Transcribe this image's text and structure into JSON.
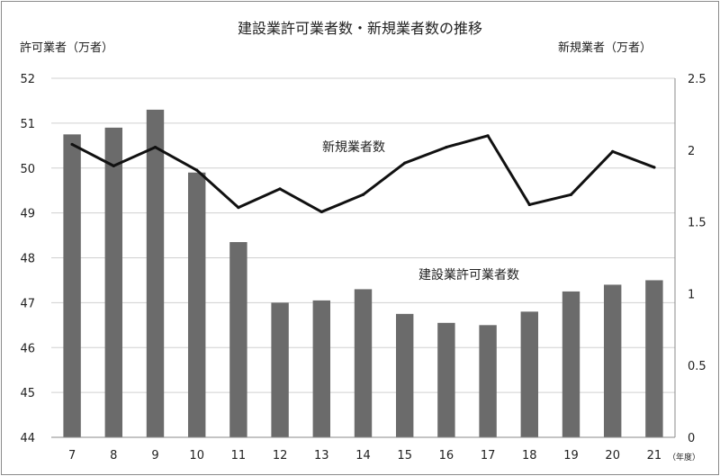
{
  "chart_data": {
    "type": "bar",
    "title": "建設業許可業者数・新規業者数の推移",
    "y_left_label": "許可業者（万者）",
    "y_right_label": "新規業者（万者）",
    "x_unit_label": "（年度）",
    "categories": [
      "7",
      "8",
      "9",
      "10",
      "11",
      "12",
      "13",
      "14",
      "15",
      "16",
      "17",
      "18",
      "19",
      "20",
      "21"
    ],
    "y_left_ticks": [
      "44",
      "45",
      "46",
      "47",
      "48",
      "49",
      "50",
      "51",
      "52"
    ],
    "y_right_ticks": [
      "0",
      "0.5",
      "1",
      "1.5",
      "2",
      "2.5"
    ],
    "ylim_left": [
      44,
      52
    ],
    "ylim_right": [
      0,
      2.5
    ],
    "grid": true,
    "series": [
      {
        "name": "建設業許可業者数",
        "type": "bar",
        "axis": "left",
        "color": "#6b6b6b",
        "values": [
          50.75,
          50.9,
          51.3,
          49.9,
          48.35,
          47.0,
          47.05,
          47.3,
          46.75,
          46.55,
          46.5,
          46.8,
          47.25,
          47.4,
          47.5
        ]
      },
      {
        "name": "新規業者数",
        "type": "line",
        "axis": "right",
        "color": "#111111",
        "values": [
          2.04,
          1.89,
          2.02,
          1.86,
          1.6,
          1.73,
          1.57,
          1.69,
          1.91,
          2.02,
          2.1,
          1.62,
          1.69,
          1.99,
          1.88
        ]
      }
    ]
  }
}
